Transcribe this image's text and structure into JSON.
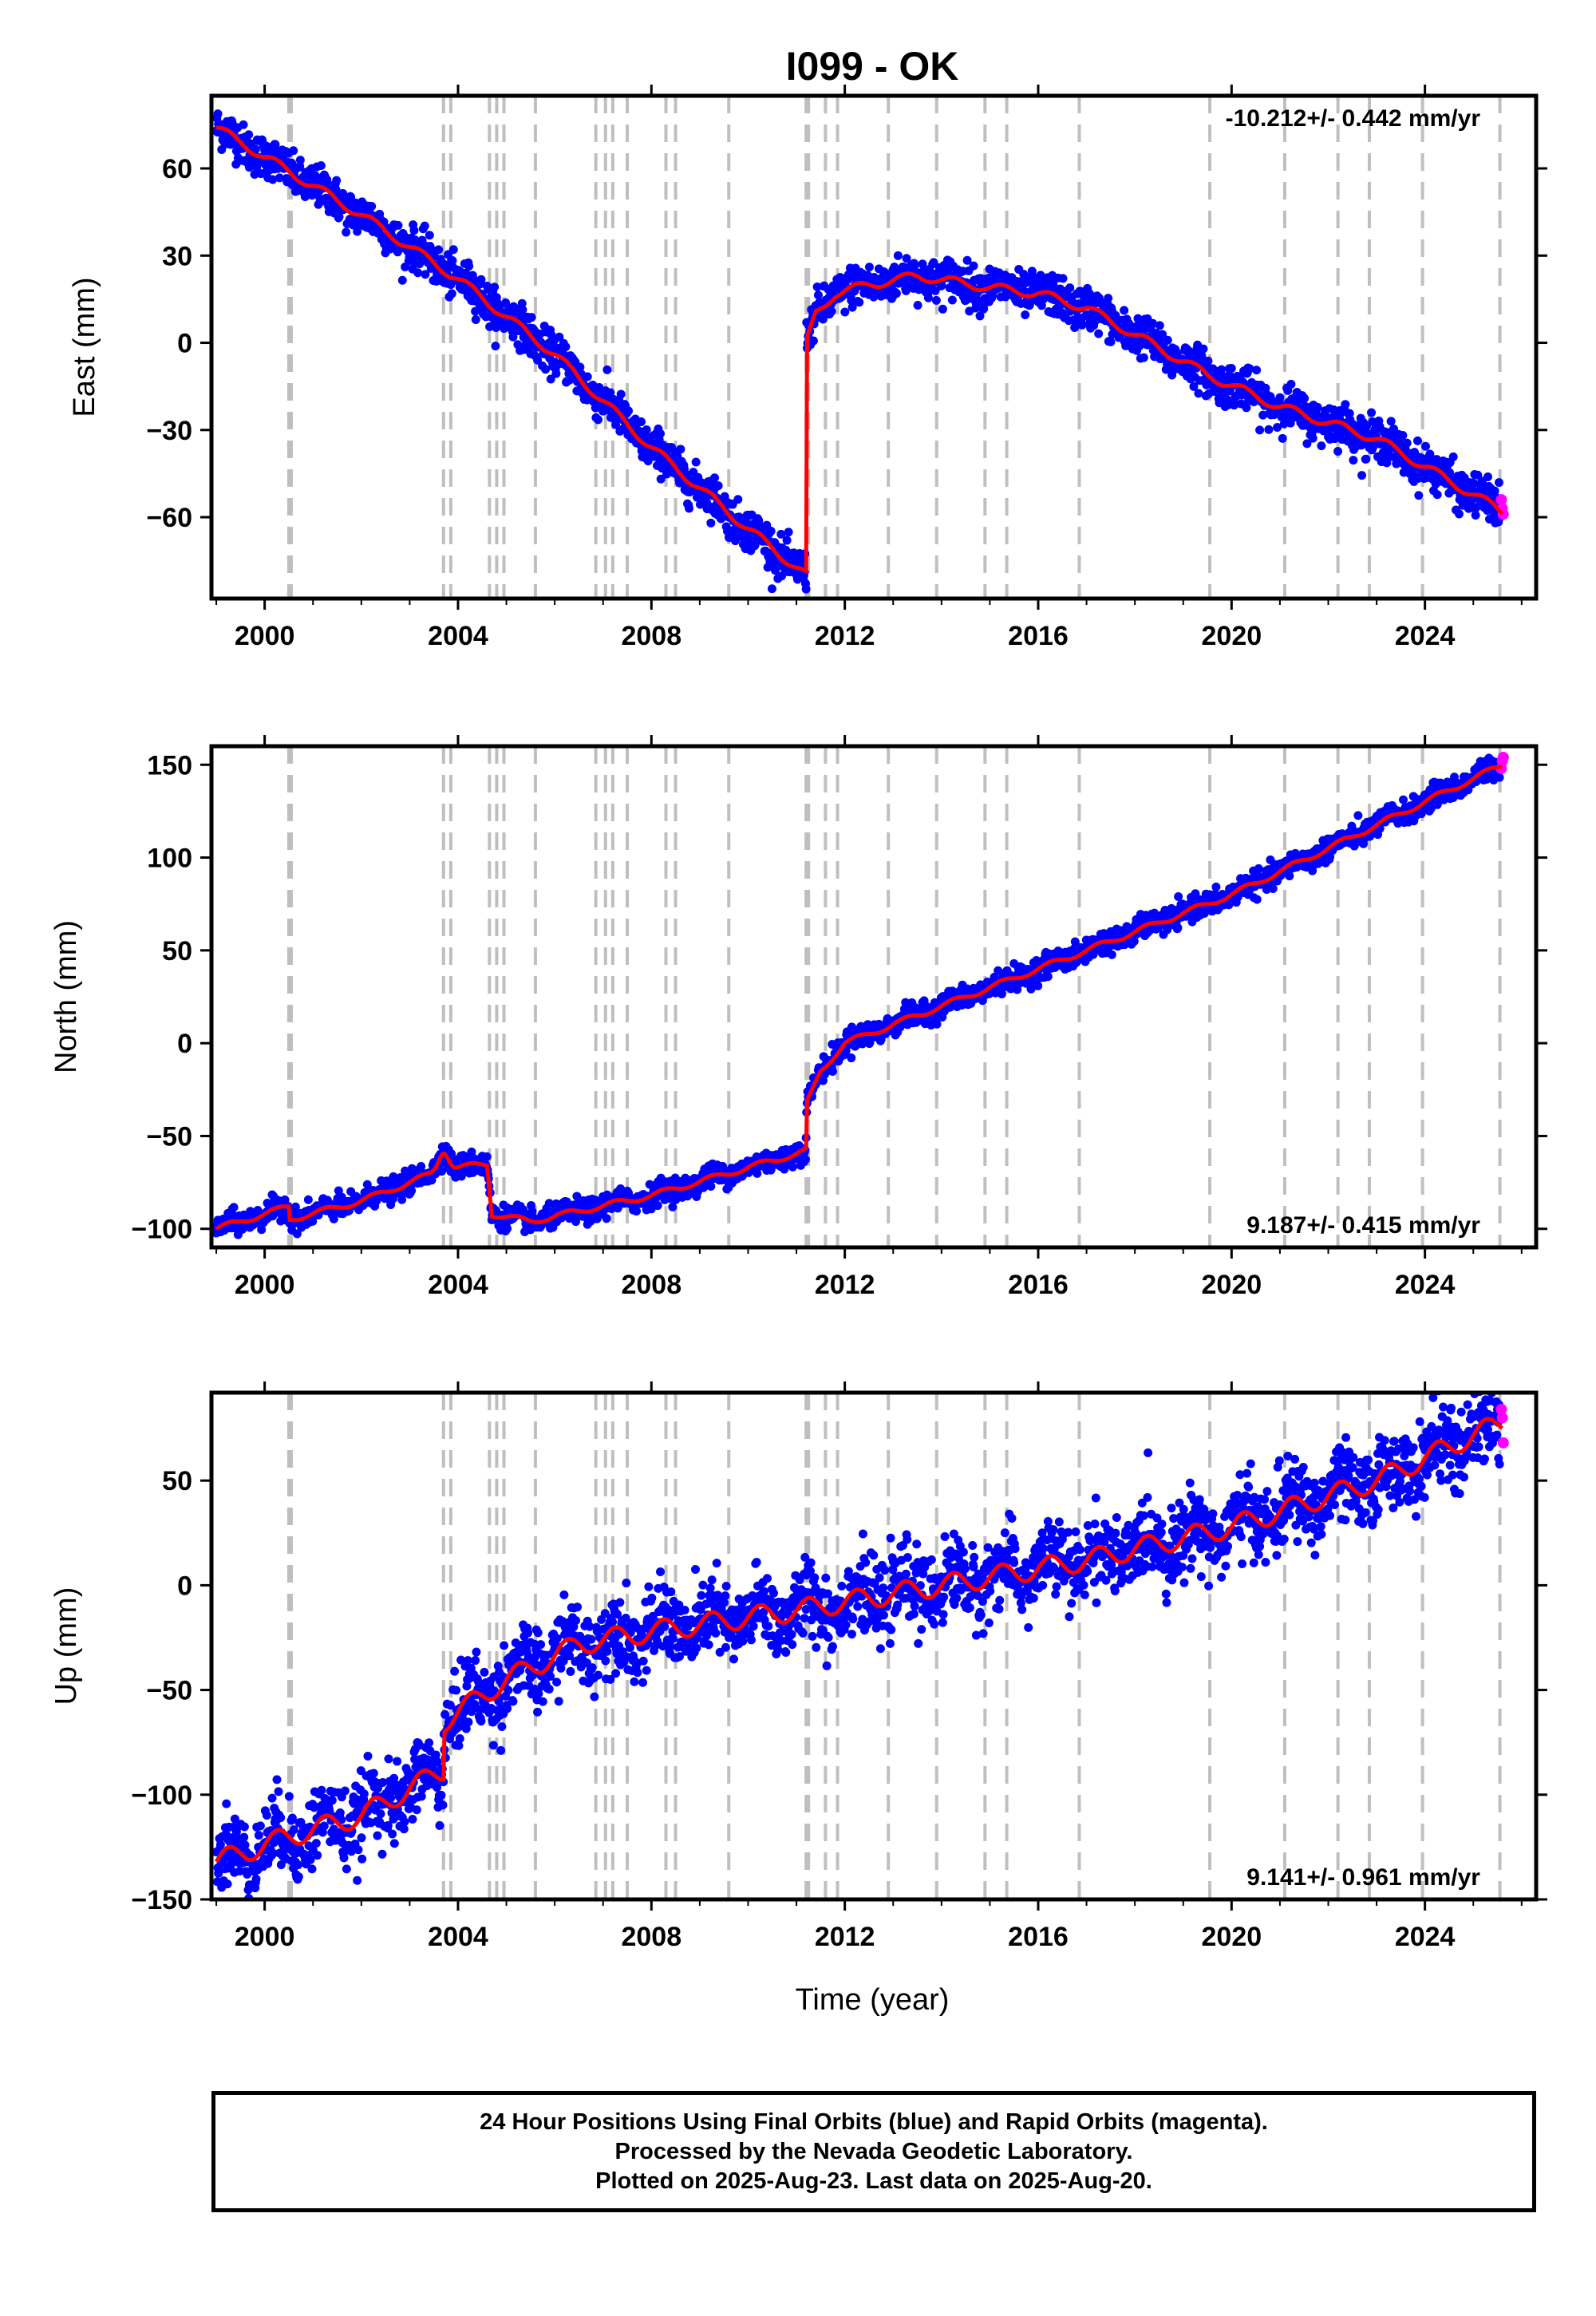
{
  "title": "I099 - OK",
  "xlabel": "Time (year)",
  "colors": {
    "final": "#0000ff",
    "rapid": "#ff00ff",
    "model": "#ff0000",
    "steps": "#bfbfbf"
  },
  "step_events": [
    2000.5,
    2000.55,
    2003.7,
    2003.85,
    2004.65,
    2004.8,
    2004.95,
    2005.6,
    2006.85,
    2007.05,
    2007.2,
    2007.5,
    2008.3,
    2008.5,
    2009.6,
    2011.2,
    2011.25,
    2011.6,
    2011.85,
    2012.9,
    2013.9,
    2014.9,
    2015.35,
    2016.85,
    2019.55,
    2021.1,
    2022.2,
    2022.85,
    2023.95,
    2025.55
  ],
  "chart_data": [
    {
      "type": "scatter",
      "ylabel": "East (mm)",
      "rate": "-10.212+/- 0.442 mm/yr",
      "xlim": [
        1998.9,
        2026.3
      ],
      "ylim": [
        -88,
        85
      ],
      "xticks": [
        2000,
        2004,
        2008,
        2012,
        2016,
        2020,
        2024
      ],
      "yticks": [
        60,
        30,
        0,
        -30,
        -60
      ],
      "ytick_labels": [
        "60",
        "30",
        "0",
        "−30",
        "−60"
      ],
      "trend": {
        "x": [
          1999.0,
          2000.0,
          2002.0,
          2004.0,
          2006.0,
          2008.0,
          2010.0,
          2011.2,
          2011.21,
          2011.4,
          2011.8,
          2012.5,
          2013.5,
          2015.0,
          2016.0,
          2017.0,
          2019.5,
          2021.0,
          2023.0,
          2025.6
        ],
        "y": [
          74,
          64,
          44,
          22,
          -4,
          -36,
          -64,
          -80,
          0,
          10,
          17,
          20,
          23,
          19,
          17,
          12,
          -11,
          -22,
          -33,
          -58
        ]
      },
      "scatter_spread": 3.5,
      "rapid": {
        "x": [
          2025.58,
          2025.6,
          2025.62
        ],
        "y": [
          -54,
          -57,
          -59
        ]
      }
    },
    {
      "type": "scatter",
      "ylabel": "North (mm)",
      "rate": "9.187+/- 0.415 mm/yr",
      "xlim": [
        1998.9,
        2026.3
      ],
      "ylim": [
        -110,
        160
      ],
      "xticks": [
        2000,
        2004,
        2008,
        2012,
        2016,
        2020,
        2024
      ],
      "yticks": [
        150,
        100,
        50,
        0,
        -50,
        -100
      ],
      "ytick_labels": [
        "150",
        "100",
        "50",
        "0",
        "−50",
        "−100"
      ],
      "trend": {
        "x": [
          1999.0,
          2000.5,
          2000.51,
          2002.0,
          2003.7,
          2004.6,
          2004.7,
          2005.5,
          2008.0,
          2011.2,
          2011.21,
          2011.5,
          2012.0,
          2013.0,
          2016.0,
          2020.0,
          2025.6
        ],
        "y": [
          -100,
          -88,
          -95,
          -85,
          -68,
          -65,
          -92,
          -96,
          -82,
          -58,
          -33,
          -15,
          0,
          10,
          40,
          80,
          150
        ],
        "bump": {
          "x": 2003.7,
          "h": 10
        }
      },
      "scatter_spread": 3.0,
      "rapid": {
        "x": [
          2025.58,
          2025.6,
          2025.62
        ],
        "y": [
          148,
          152,
          154
        ]
      }
    },
    {
      "type": "scatter",
      "ylabel": "Up (mm)",
      "rate": "9.141+/- 0.961 mm/yr",
      "xlim": [
        1998.9,
        2026.3
      ],
      "ylim": [
        -150,
        92
      ],
      "xticks": [
        2000,
        2004,
        2008,
        2012,
        2016,
        2020,
        2024
      ],
      "yticks": [
        50,
        0,
        -50,
        -100,
        -150
      ],
      "ytick_labels": [
        "50",
        "0",
        "−50",
        "−100",
        "−150"
      ],
      "trend": {
        "x": [
          1999.0,
          2000.5,
          2002.0,
          2003.7,
          2003.71,
          2005.0,
          2006.5,
          2008.0,
          2011.0,
          2014.0,
          2017.0,
          2020.0,
          2023.0,
          2025.6
        ],
        "y": [
          -132,
          -120,
          -110,
          -88,
          -65,
          -45,
          -28,
          -22,
          -12,
          0,
          12,
          28,
          50,
          78
        ]
      },
      "scatter_spread": 9.0,
      "rapid": {
        "x": [
          2025.58,
          2025.6,
          2025.62
        ],
        "y": [
          84,
          80,
          68
        ]
      }
    }
  ],
  "footer": {
    "line1": "24 Hour Positions Using Final Orbits (blue) and Rapid Orbits (magenta).",
    "line2": "Processed by the Nevada Geodetic Laboratory.",
    "line3": "Plotted on 2025-Aug-23. Last data on 2025-Aug-20."
  }
}
